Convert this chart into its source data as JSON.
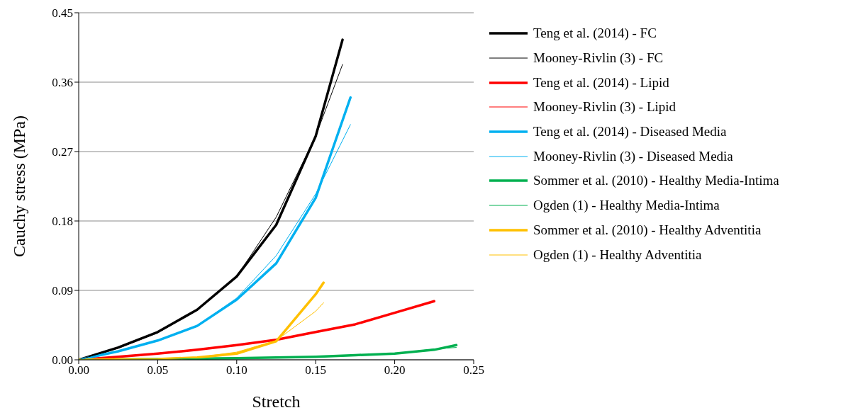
{
  "chart_data": {
    "type": "line",
    "xlabel": "Stretch",
    "ylabel": "Cauchy stress (MPa)",
    "xlim": [
      0,
      0.25
    ],
    "xticks": [
      {
        "value": 0,
        "label": "0.00"
      },
      {
        "value": 0.05,
        "label": "0.05"
      },
      {
        "value": 0.1,
        "label": "0.10"
      },
      {
        "value": 0.15,
        "label": "0.15"
      },
      {
        "value": 0.2,
        "label": "0.20"
      },
      {
        "value": 0.25,
        "label": "0.25"
      }
    ],
    "ylim": [
      0,
      0.45
    ],
    "yticks": [
      {
        "value": 0,
        "label": "0.00"
      },
      {
        "value": 0.09,
        "label": "0.09"
      },
      {
        "value": 0.18,
        "label": "0.18"
      },
      {
        "value": 0.27,
        "label": "0.27"
      },
      {
        "value": 0.36,
        "label": "0.36"
      },
      {
        "value": 0.45,
        "label": "0.45"
      }
    ],
    "grid": "y",
    "legend": "right",
    "marker": "none",
    "line_style": "solid",
    "series": [
      {
        "name": "Teng et al. (2014) - FC",
        "color": "#000000",
        "x": [
          0,
          0.025,
          0.05,
          0.075,
          0.1,
          0.125,
          0.15,
          0.167
        ],
        "values": [
          0,
          0.016,
          0.036,
          0.065,
          0.108,
          0.175,
          0.29,
          0.415
        ]
      },
      {
        "name": "Mooney-Rivlin (3) - FC",
        "color": "#000000",
        "x": [
          0,
          0.025,
          0.05,
          0.075,
          0.1,
          0.125,
          0.15,
          0.167
        ],
        "values": [
          0,
          0.015,
          0.035,
          0.064,
          0.108,
          0.185,
          0.29,
          0.383
        ]
      },
      {
        "name": "Teng et al. (2014) - Lipid",
        "color": "#ff0000",
        "x": [
          0,
          0.025,
          0.05,
          0.075,
          0.1,
          0.125,
          0.15,
          0.175,
          0.2,
          0.225
        ],
        "values": [
          0,
          0.004,
          0.008,
          0.013,
          0.019,
          0.026,
          0.036,
          0.046,
          0.061,
          0.076
        ]
      },
      {
        "name": "Mooney-Rivlin (3) - Lipid",
        "color": "#ff0000"
      },
      {
        "name": "Teng et al. (2014) - Diseased Media",
        "color": "#00b0f0",
        "x": [
          0,
          0.025,
          0.05,
          0.075,
          0.1,
          0.125,
          0.15,
          0.172
        ],
        "values": [
          0,
          0.011,
          0.025,
          0.044,
          0.078,
          0.125,
          0.21,
          0.34
        ]
      },
      {
        "name": "Mooney-Rivlin (3) - Diseased Media",
        "color": "#00b0f0",
        "x": [
          0,
          0.025,
          0.05,
          0.075,
          0.1,
          0.125,
          0.15,
          0.172
        ],
        "values": [
          0,
          0.011,
          0.025,
          0.044,
          0.08,
          0.135,
          0.215,
          0.305
        ]
      },
      {
        "name": "Sommer et al. (2010) - Healthy Media-Intima",
        "color": "#00b050",
        "x": [
          0,
          0.05,
          0.1,
          0.15,
          0.175,
          0.2,
          0.225,
          0.239
        ],
        "values": [
          0,
          0.001,
          0.002,
          0.004,
          0.006,
          0.008,
          0.013,
          0.019
        ]
      },
      {
        "name": "Ogden (1) - Healthy Media-Intima",
        "color": "#00b050",
        "x": [
          0,
          0.05,
          0.1,
          0.15,
          0.175,
          0.2,
          0.225,
          0.239
        ],
        "values": [
          0,
          0.001,
          0.002,
          0.004,
          0.006,
          0.008,
          0.014,
          0.016
        ]
      },
      {
        "name": "Sommer et al. (2010) - Healthy Adventitia",
        "color": "#ffc000",
        "x": [
          0,
          0.05,
          0.075,
          0.1,
          0.125,
          0.15,
          0.155
        ],
        "values": [
          0,
          0.001,
          0.003,
          0.008,
          0.024,
          0.085,
          0.1
        ]
      },
      {
        "name": "Ogden (1) - Healthy Adventitia",
        "color": "#ffc000",
        "x": [
          0,
          0.05,
          0.075,
          0.1,
          0.125,
          0.15,
          0.155
        ],
        "values": [
          0,
          0.001,
          0.003,
          0.01,
          0.025,
          0.063,
          0.074
        ]
      }
    ]
  }
}
